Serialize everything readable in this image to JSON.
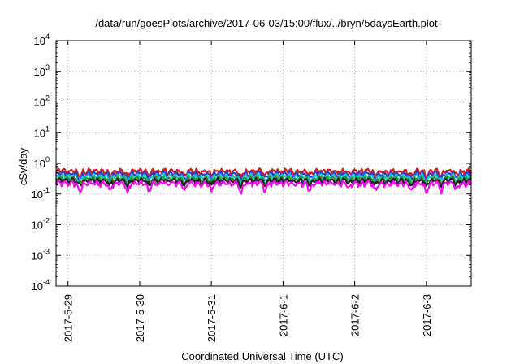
{
  "chart_data": {
    "type": "line",
    "title": "/data/run/goesPlots/archive/2017-06-03/15:00/flux/../bryn/5daysEarth.plot",
    "xlabel": "Coordinated Universal Time (UTC)",
    "ylabel": "cSv/day",
    "yscale": "log",
    "ylim": [
      0.0001,
      10000
    ],
    "xlim": [
      "2017-05-28 20:00",
      "2017-06-03 15:00"
    ],
    "grid": true,
    "x_ticks": [
      {
        "date": "2017-05-29",
        "label": "2017-5-29"
      },
      {
        "date": "2017-05-30",
        "label": "2017-5-30"
      },
      {
        "date": "2017-05-31",
        "label": "2017-5-31"
      },
      {
        "date": "2017-06-01",
        "label": "2017-6-1"
      },
      {
        "date": "2017-06-02",
        "label": "2017-6-2"
      },
      {
        "date": "2017-06-03",
        "label": "2017-6-3"
      }
    ],
    "y_ticks": [
      {
        "value": 0.0001,
        "base": "10",
        "exp": "-4"
      },
      {
        "value": 0.001,
        "base": "10",
        "exp": "-3"
      },
      {
        "value": 0.01,
        "base": "10",
        "exp": "-2"
      },
      {
        "value": 0.1,
        "base": "10",
        "exp": "-1"
      },
      {
        "value": 1,
        "base": "10",
        "exp": "0"
      },
      {
        "value": 10,
        "base": "10",
        "exp": "1"
      },
      {
        "value": 100,
        "base": "10",
        "exp": "2"
      },
      {
        "value": 1000,
        "base": "10",
        "exp": "3"
      },
      {
        "value": 10000,
        "base": "10",
        "exp": "4"
      }
    ],
    "series": [
      {
        "color": "#d01c1c",
        "base_value": 0.55
      },
      {
        "color": "#2a3fd6",
        "base_value": 0.45
      },
      {
        "color": "#19c6c6",
        "base_value": 0.37
      },
      {
        "color": "#2f8f2f",
        "base_value": 0.31
      },
      {
        "color": "#222222",
        "base_value": 0.27
      },
      {
        "color": "#ee10ee",
        "base_value": 0.22
      }
    ],
    "dips": [
      {
        "date": "2017-05-29 04:00",
        "factor": 0.45
      },
      {
        "date": "2017-05-29 14:00",
        "factor": 0.6
      },
      {
        "date": "2017-05-29 20:00",
        "factor": 0.45
      },
      {
        "date": "2017-05-30 03:00",
        "factor": 0.55
      },
      {
        "date": "2017-05-30 15:00",
        "factor": 0.6
      },
      {
        "date": "2017-05-31 00:00",
        "factor": 0.55
      },
      {
        "date": "2017-05-31 10:00",
        "factor": 0.4
      },
      {
        "date": "2017-05-31 18:00",
        "factor": 0.5
      },
      {
        "date": "2017-06-01 09:00",
        "factor": 0.55
      },
      {
        "date": "2017-06-01 22:00",
        "factor": 0.6
      },
      {
        "date": "2017-06-02 07:00",
        "factor": 0.55
      },
      {
        "date": "2017-06-02 19:00",
        "factor": 0.6
      },
      {
        "date": "2017-06-03 00:00",
        "factor": 0.45
      },
      {
        "date": "2017-06-03 05:00",
        "factor": 0.55
      },
      {
        "date": "2017-06-03 10:00",
        "factor": 0.6
      }
    ]
  }
}
